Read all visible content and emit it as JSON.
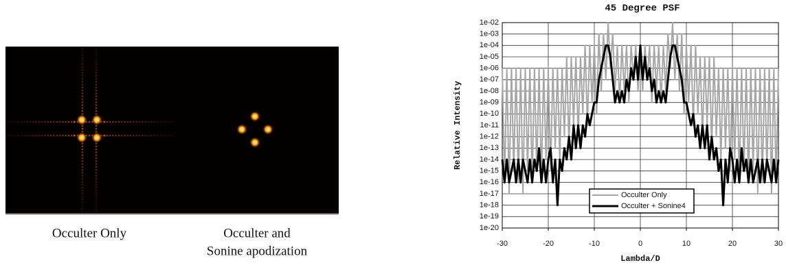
{
  "captions": {
    "left": "Occulter Only",
    "right_line1": "Occulter and",
    "right_line2": "Sonine apodization"
  },
  "chart_data": {
    "type": "line",
    "title": "45 Degree PSF",
    "x_label": "Lambda/D",
    "y_label": "Relative Intensity",
    "log_y": true,
    "grid": true,
    "legend": "lower center",
    "xlim": [
      -30,
      30
    ],
    "xticks": [
      -30,
      -20,
      -10,
      0,
      10,
      20,
      30
    ],
    "ylim": [
      1e-20,
      0.01
    ],
    "yticks": [
      {
        "value": 0.01,
        "label": "1e-02"
      },
      {
        "value": 0.001,
        "label": "1e-03"
      },
      {
        "value": 0.0001,
        "label": "1e-04"
      },
      {
        "value": 1e-05,
        "label": "1e-05"
      },
      {
        "value": 1e-06,
        "label": "1e-06"
      },
      {
        "value": 1e-07,
        "label": "1e-07"
      },
      {
        "value": 1e-08,
        "label": "1e-08"
      },
      {
        "value": 1e-09,
        "label": "1e-09"
      },
      {
        "value": 1e-10,
        "label": "1e-10"
      },
      {
        "value": 1e-11,
        "label": "1e-11"
      },
      {
        "value": 1e-12,
        "label": "1e-12"
      },
      {
        "value": 1e-13,
        "label": "1e-13"
      },
      {
        "value": 1e-14,
        "label": "1e-14"
      },
      {
        "value": 1e-15,
        "label": "1e-15"
      },
      {
        "value": 1e-16,
        "label": "1e-16"
      },
      {
        "value": 1e-17,
        "label": "1e-17"
      },
      {
        "value": 1e-18,
        "label": "1e-18"
      },
      {
        "value": 1e-19,
        "label": "1e-19"
      },
      {
        "value": 1e-20,
        "label": "1e-20"
      }
    ],
    "x": [
      -30,
      -29.5,
      -29,
      -28.5,
      -28,
      -27.5,
      -27,
      -26.5,
      -26,
      -25.5,
      -25,
      -24.5,
      -24,
      -23.5,
      -23,
      -22.5,
      -22,
      -21.5,
      -21,
      -20.5,
      -20,
      -19.5,
      -19,
      -18.5,
      -18,
      -17.5,
      -17,
      -16.5,
      -16,
      -15.5,
      -15,
      -14.5,
      -14,
      -13.5,
      -13,
      -12.5,
      -12,
      -11.5,
      -11,
      -10.5,
      -10,
      -9.5,
      -9,
      -8.5,
      -8,
      -7.5,
      -7,
      -6.5,
      -6,
      -5.5,
      -5,
      -4.5,
      -4,
      -3.5,
      -3,
      -2.5,
      -2,
      -1.5,
      -1,
      -0.5,
      0,
      0.5,
      1,
      1.5,
      2,
      2.5,
      3,
      3.5,
      4,
      4.5,
      5,
      5.5,
      6,
      6.5,
      7,
      7.5,
      8,
      8.5,
      9,
      9.5,
      10,
      10.5,
      11,
      11.5,
      12,
      12.5,
      13,
      13.5,
      14,
      14.5,
      15,
      15.5,
      16,
      16.5,
      17,
      17.5,
      18,
      18.5,
      19,
      19.5,
      20,
      20.5,
      21,
      21.5,
      22,
      22.5,
      23,
      23.5,
      24,
      24.5,
      25,
      25.5,
      26,
      26.5,
      27,
      27.5,
      28,
      28.5,
      29,
      29.5,
      30
    ],
    "series": [
      {
        "name": "Occulter Only",
        "color": "#a6a6a6",
        "width": 2,
        "values": [
          1e-06,
          1e-16,
          1e-06,
          1e-17,
          1e-06,
          1e-15,
          1e-06,
          1e-16,
          1e-06,
          1e-17,
          1e-06,
          1e-15,
          1e-06,
          1e-16,
          1e-06,
          1e-15,
          1e-06,
          1e-16,
          1e-06,
          1e-14,
          1e-06,
          1e-15,
          1e-06,
          1e-13,
          1e-06,
          1e-14,
          1e-06,
          1e-12,
          1e-05,
          1e-13,
          1e-05,
          1e-11,
          1e-05,
          1e-12,
          1e-05,
          1e-10,
          0.0001,
          1e-11,
          0.0001,
          1e-09,
          0.0001,
          1e-10,
          0.001,
          1e-08,
          0.001,
          1e-07,
          0.01,
          1e-06,
          0.001,
          1e-08,
          0.0001,
          1e-09,
          0.0001,
          1e-08,
          0.0001,
          1e-09,
          0.0001,
          1e-07,
          0.0001,
          1e-08,
          0.0001,
          1e-08,
          0.0001,
          1e-07,
          0.0001,
          1e-09,
          0.0001,
          1e-08,
          0.0001,
          1e-09,
          0.0001,
          1e-08,
          0.001,
          1e-06,
          0.01,
          1e-07,
          0.001,
          1e-08,
          0.001,
          1e-10,
          0.0001,
          1e-09,
          0.0001,
          1e-11,
          0.0001,
          1e-10,
          1e-05,
          1e-12,
          1e-05,
          1e-11,
          1e-05,
          1e-13,
          1e-05,
          1e-12,
          1e-06,
          1e-14,
          1e-06,
          1e-13,
          1e-06,
          1e-15,
          1e-06,
          1e-14,
          1e-06,
          1e-16,
          1e-06,
          1e-15,
          1e-06,
          1e-16,
          1e-06,
          1e-15,
          1e-06,
          1e-17,
          1e-06,
          1e-16,
          1e-06,
          1e-15,
          1e-06,
          1e-17,
          1e-06,
          1e-16,
          1e-06
        ]
      },
      {
        "name": "Occulter + Sonine4",
        "color": "#000000",
        "width": 3,
        "values": [
          1e-14,
          1e-16,
          1e-14,
          1e-16,
          1e-15,
          1e-14,
          1e-16,
          1e-14,
          1e-16,
          1e-14,
          1e-15,
          1e-16,
          1e-14,
          1e-16,
          1e-14,
          1e-15,
          1e-13,
          1e-16,
          1e-14,
          1e-16,
          1e-14,
          1e-13,
          1e-16,
          1e-14,
          1e-18,
          1e-14,
          1e-15,
          1e-13,
          1e-14,
          1e-12,
          1e-14,
          1e-11,
          1e-13,
          1e-11,
          1e-13,
          1e-11,
          1e-12,
          1e-10,
          1e-11,
          1e-10,
          1e-09,
          1e-09,
          1e-07,
          1e-06,
          1e-05,
          0.0001,
          0.0001,
          1e-05,
          1e-07,
          1e-09,
          1e-08,
          1e-09,
          1e-08,
          1e-09,
          1e-07,
          1e-08,
          1e-06,
          1e-07,
          1e-05,
          1e-07,
          0.0001,
          1e-07,
          1e-05,
          1e-07,
          1e-06,
          1e-08,
          1e-07,
          1e-09,
          1e-08,
          1e-09,
          1e-08,
          1e-09,
          1e-07,
          1e-05,
          0.0001,
          0.0001,
          1e-05,
          1e-06,
          1e-07,
          1e-09,
          1e-09,
          1e-10,
          1e-11,
          1e-10,
          1e-12,
          1e-11,
          1e-13,
          1e-11,
          1e-13,
          1e-11,
          1e-14,
          1e-12,
          1e-14,
          1e-13,
          1e-15,
          1e-14,
          1e-18,
          1e-14,
          1e-16,
          1e-13,
          1e-14,
          1e-16,
          1e-14,
          1e-16,
          1e-13,
          1e-15,
          1e-14,
          1e-16,
          1e-14,
          1e-16,
          1e-15,
          1e-14,
          1e-16,
          1e-14,
          1e-16,
          1e-14,
          1e-15,
          1e-16,
          1e-14,
          1e-16,
          1e-14
        ]
      }
    ]
  }
}
